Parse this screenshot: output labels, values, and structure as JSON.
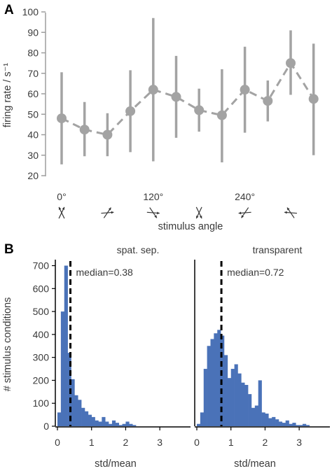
{
  "panels": {
    "a": {
      "label": "A",
      "chart_data": {
        "type": "line",
        "ylabel": "firing rate / s⁻¹",
        "xlabel": "stimulus angle",
        "ylim": [
          20,
          100
        ],
        "yticks": [
          "20",
          "30",
          "40",
          "50",
          "60",
          "70",
          "80",
          "90",
          "100"
        ],
        "xticks": [
          {
            "index": 0,
            "label": "0°"
          },
          {
            "index": 4,
            "label": "120°"
          },
          {
            "index": 8,
            "label": "240°"
          }
        ],
        "x": [
          0,
          1,
          2,
          3,
          4,
          5,
          6,
          7,
          8,
          9,
          10,
          11
        ],
        "values": [
          48,
          42.5,
          40,
          51.5,
          62,
          58.5,
          52,
          49.5,
          62,
          56.5,
          75,
          57.5
        ],
        "err_low": [
          25.5,
          29.5,
          29.5,
          31.5,
          27,
          38.5,
          41.5,
          26.5,
          41,
          46.5,
          59.5,
          30
        ],
        "err_high": [
          70.5,
          56,
          50.5,
          71.5,
          97,
          78.5,
          62.5,
          72,
          83,
          66.5,
          91,
          84.5
        ],
        "color": "#a3a3a3",
        "grid": false
      }
    },
    "b": {
      "label": "B",
      "ylabel": "# stimulus conditions",
      "charts": [
        {
          "type": "bar",
          "title": "spat. sep.",
          "xlabel": "std/mean",
          "median_label": "median=0.38",
          "median": 0.38,
          "bin_width": 0.1,
          "bin_start": 0,
          "xlim": [
            0,
            3.9
          ],
          "ylim": [
            0,
            720
          ],
          "xticks": [
            "0",
            "1",
            "2",
            "3"
          ],
          "yticks": [
            "0",
            "100",
            "200",
            "300",
            "400",
            "500",
            "600",
            "700"
          ],
          "values": [
            60,
            500,
            700,
            320,
            205,
            135,
            115,
            80,
            65,
            50,
            40,
            25,
            20,
            40,
            20,
            10,
            25,
            15,
            5,
            10,
            20,
            10,
            5,
            0,
            0,
            0,
            0,
            0,
            0,
            0,
            0,
            0,
            0,
            0,
            0,
            0,
            0,
            0,
            0
          ],
          "color": "#4a72b8",
          "median_color": "#000000"
        },
        {
          "type": "bar",
          "title": "transparent",
          "xlabel": "std/mean",
          "median_label": "median=0.72",
          "median": 0.72,
          "bin_width": 0.1,
          "bin_start": 0,
          "xlim": [
            0,
            3.9
          ],
          "ylim": [
            0,
            720
          ],
          "xticks": [
            "0",
            "1",
            "2",
            "3"
          ],
          "yticks": [],
          "values": [
            10,
            60,
            250,
            350,
            380,
            405,
            420,
            395,
            310,
            210,
            250,
            270,
            230,
            190,
            180,
            140,
            80,
            90,
            200,
            60,
            55,
            35,
            40,
            30,
            20,
            15,
            25,
            10,
            15,
            5,
            5,
            10,
            5,
            0,
            0,
            0,
            0,
            0,
            0
          ],
          "color": "#4a72b8",
          "median_color": "#000000"
        }
      ]
    }
  }
}
